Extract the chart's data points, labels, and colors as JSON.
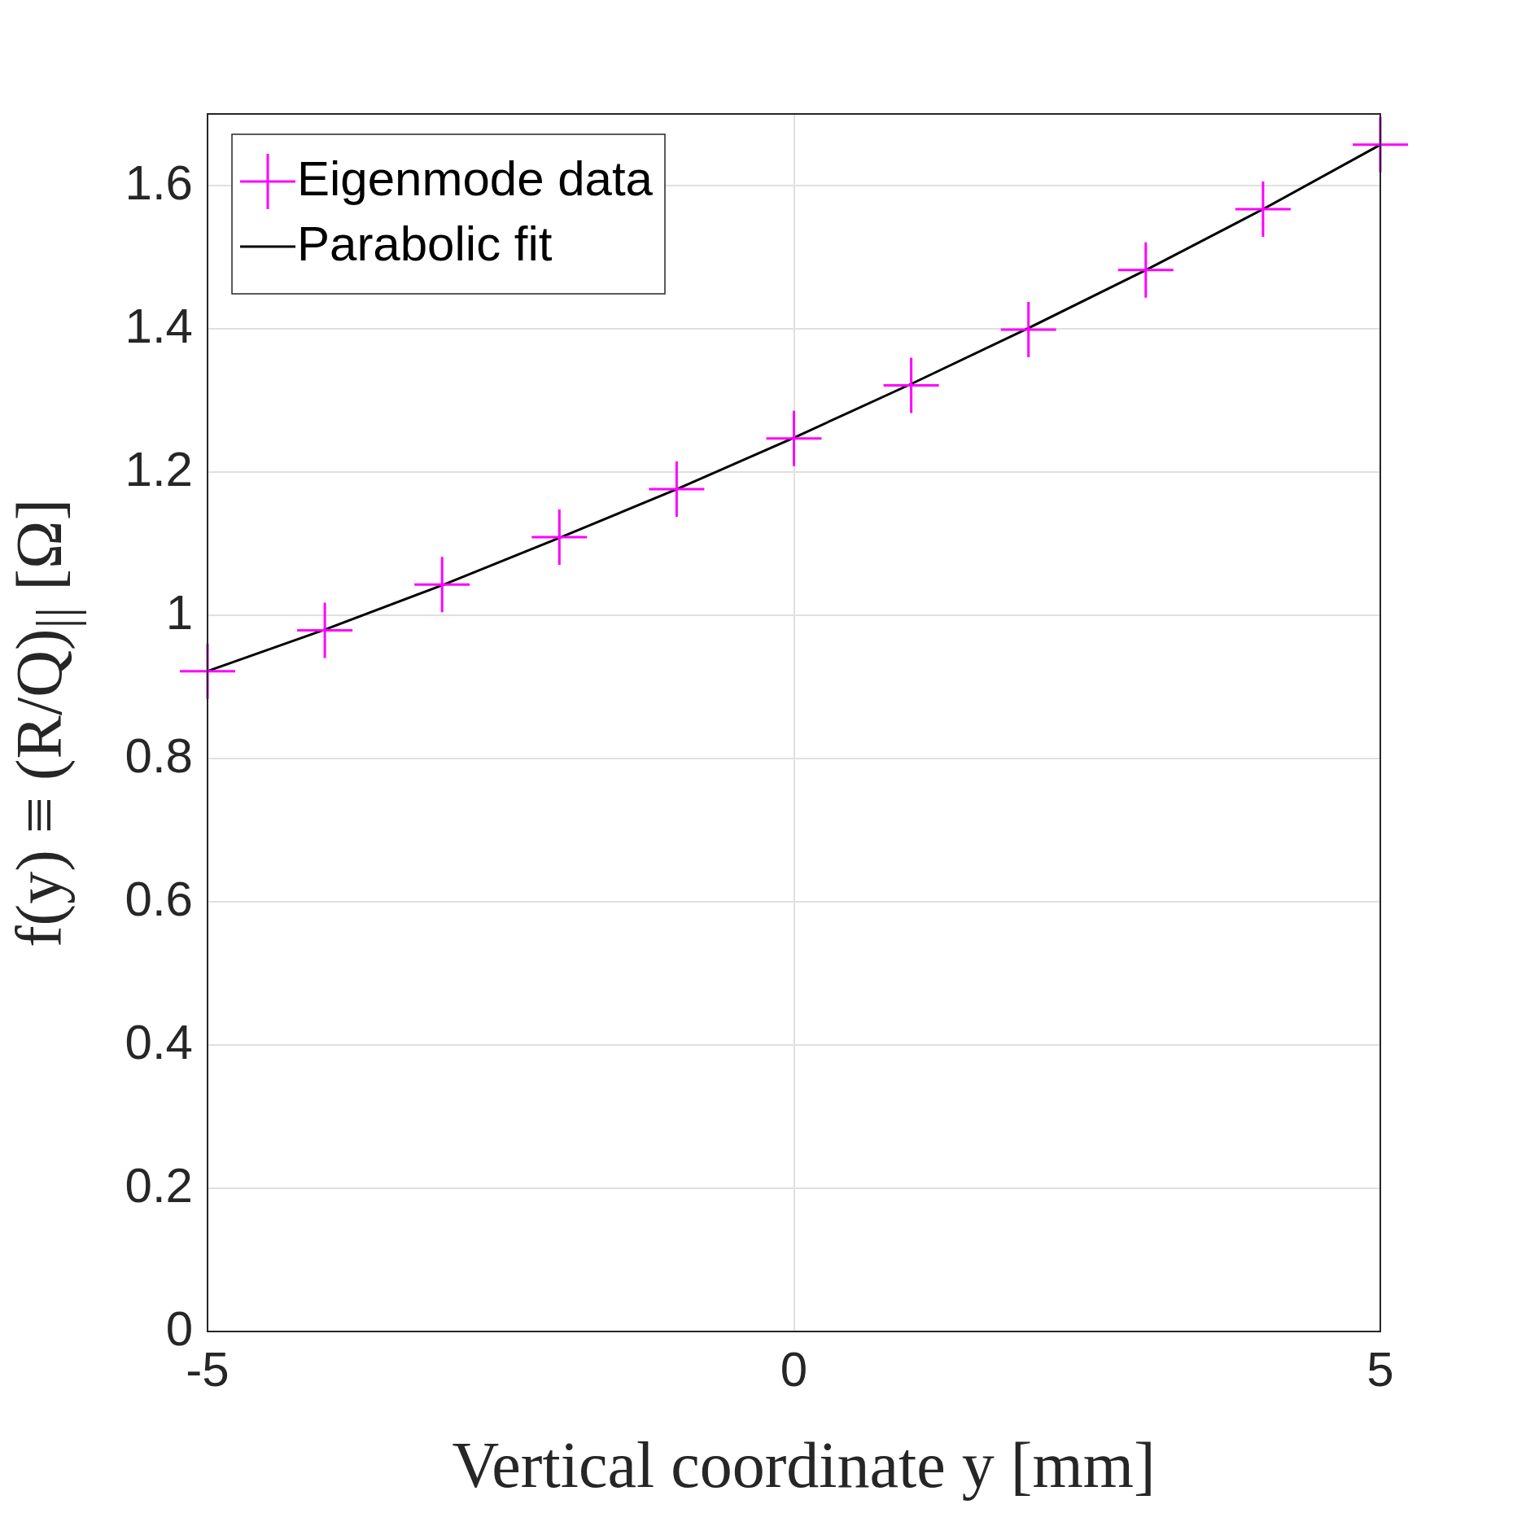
{
  "chart_data": {
    "type": "line",
    "xlabel": "Vertical coordinate y [mm]",
    "ylabel": "f(y) ≡ (R/Q)$_{||}$ [Ω]",
    "x": [
      -5,
      -4,
      -3,
      -2,
      -1,
      0,
      1,
      2,
      3,
      4,
      5
    ],
    "series": [
      {
        "name": "Eigenmode data",
        "type": "scatter",
        "color": "#ff00ff",
        "marker": "cross",
        "values": [
          0.922,
          0.979,
          1.043,
          1.109,
          1.176,
          1.247,
          1.321,
          1.399,
          1.482,
          1.567,
          1.657
        ]
      },
      {
        "name": "Parabolic fit",
        "color": "#000000",
        "marker": "none",
        "line_style": "solid",
        "values": [
          0.922,
          0.98,
          1.042,
          1.108,
          1.176,
          1.248,
          1.323,
          1.401,
          1.482,
          1.567,
          1.657
        ]
      }
    ],
    "xlim": [
      -5,
      5
    ],
    "xticks": [
      -5,
      0,
      5
    ],
    "ylim": [
      0,
      1.7
    ],
    "yticks": [
      0,
      0.2,
      0.4,
      0.6,
      0.8,
      1,
      1.2,
      1.4,
      1.6
    ],
    "grid": true,
    "legend": "top left"
  }
}
